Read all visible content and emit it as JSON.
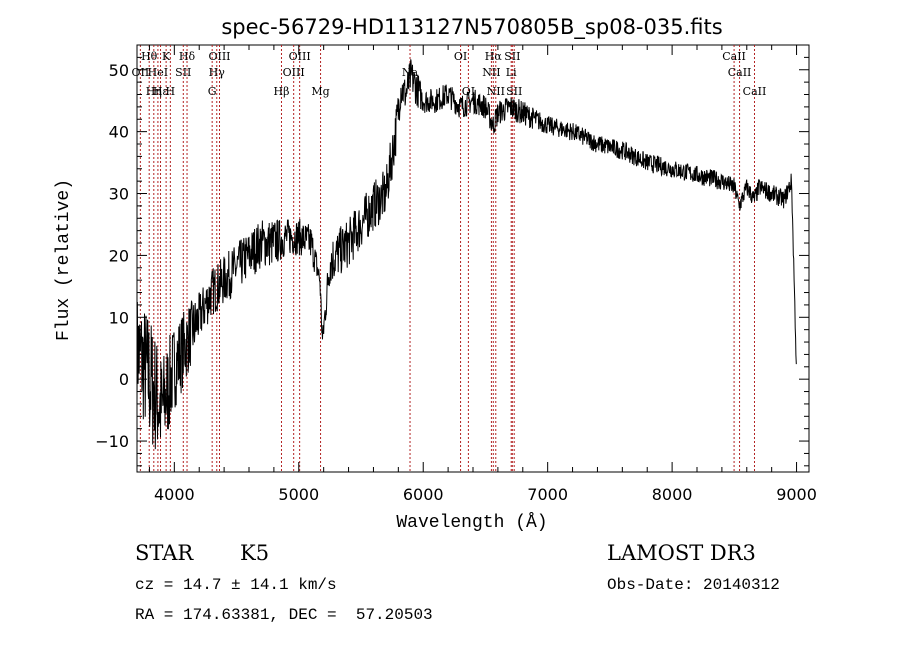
{
  "chart_data": {
    "type": "line",
    "title": "spec-56729-HD113127N570805B_sp08-035.fits",
    "xlabel": "Wavelength (Å)",
    "ylabel": "Flux (relative)",
    "xlim": [
      3700,
      9100
    ],
    "ylim": [
      -15,
      54
    ],
    "xticks": [
      {
        "value": 4000,
        "label": "4000"
      },
      {
        "value": 5000,
        "label": "5000"
      },
      {
        "value": 6000,
        "label": "6000"
      },
      {
        "value": 7000,
        "label": "7000"
      },
      {
        "value": 8000,
        "label": "8000"
      },
      {
        "value": 9000,
        "label": "9000"
      }
    ],
    "yticks": [
      {
        "value": -10,
        "label": "−10"
      },
      {
        "value": 0,
        "label": "0"
      },
      {
        "value": 10,
        "label": "10"
      },
      {
        "value": 20,
        "label": "20"
      },
      {
        "value": 30,
        "label": "30"
      },
      {
        "value": 40,
        "label": "40"
      },
      {
        "value": 50,
        "label": "50"
      }
    ],
    "grid": false,
    "series": [
      {
        "name": "spectrum",
        "color": "#000000",
        "x": [
          3700,
          3800,
          3900,
          4000,
          4100,
          4200,
          4300,
          4400,
          4500,
          4600,
          4700,
          4800,
          4900,
          5000,
          5100,
          5170,
          5190,
          5250,
          5400,
          5500,
          5600,
          5700,
          5780,
          5820,
          5860,
          5900,
          5950,
          6000,
          6100,
          6200,
          6300,
          6400,
          6500,
          6563,
          6600,
          6700,
          6800,
          7000,
          7200,
          7400,
          7600,
          7800,
          8000,
          8200,
          8400,
          8500,
          8540,
          8600,
          8660,
          8700,
          8800,
          8900,
          8960,
          9000
        ],
        "y": [
          5,
          0,
          -5,
          2,
          6,
          10,
          14,
          16,
          18,
          20,
          22,
          22,
          23,
          23,
          22,
          16,
          6,
          19,
          22,
          25,
          28,
          30,
          40,
          47,
          46,
          49,
          47,
          45,
          45,
          46,
          44,
          45,
          44,
          41,
          43,
          44,
          43,
          41,
          40,
          38,
          37,
          35,
          34,
          33,
          32,
          31,
          28,
          31,
          29,
          31,
          30,
          29,
          32,
          1
        ],
        "noise": [
          9,
          11,
          9,
          7,
          6,
          4,
          4,
          4,
          4,
          4,
          4,
          4,
          3,
          3,
          3,
          2,
          2,
          4,
          4,
          4,
          4,
          4,
          4,
          3,
          3,
          3,
          3,
          2,
          2,
          2,
          2,
          2,
          2,
          2,
          2,
          2,
          2,
          1.5,
          1.5,
          1.5,
          1.5,
          1.5,
          1.5,
          1.5,
          1.5,
          1.5,
          1.5,
          1.5,
          1.5,
          1.5,
          1.5,
          1.5,
          1.5,
          1.5
        ]
      }
    ],
    "lines": [
      {
        "wave": 3798,
        "row": 0,
        "label": "Hθ"
      },
      {
        "wave": 3727,
        "row": 1,
        "label": "OII"
      },
      {
        "wave": 3835,
        "row": 2,
        "label": "Hη"
      },
      {
        "wave": 3868,
        "row": 1,
        "label": "HeI"
      },
      {
        "wave": 3889,
        "row": 2,
        "label": "Hε"
      },
      {
        "wave": 3934,
        "row": 0,
        "label": "K"
      },
      {
        "wave": 3968,
        "row": 2,
        "label": "H"
      },
      {
        "wave": 4072,
        "row": 1,
        "label": "SII"
      },
      {
        "wave": 4102,
        "row": 0,
        "label": "Hδ"
      },
      {
        "wave": 4304,
        "row": 2,
        "label": "G"
      },
      {
        "wave": 4341,
        "row": 1,
        "label": "Hγ"
      },
      {
        "wave": 4363,
        "row": 0,
        "label": "OIII"
      },
      {
        "wave": 4861,
        "row": 2,
        "label": "Hβ"
      },
      {
        "wave": 4959,
        "row": 1,
        "label": "OIII"
      },
      {
        "wave": 5007,
        "row": 0,
        "label": "OIII"
      },
      {
        "wave": 5175,
        "row": 2,
        "label": "Mg"
      },
      {
        "wave": 5894,
        "row": 1,
        "label": "Na"
      },
      {
        "wave": 6300,
        "row": 0,
        "label": "OI"
      },
      {
        "wave": 6363,
        "row": 2,
        "label": "OI"
      },
      {
        "wave": 6548,
        "row": 1,
        "label": "NII"
      },
      {
        "wave": 6563,
        "row": 0,
        "label": "Hα"
      },
      {
        "wave": 6583,
        "row": 2,
        "label": "NII"
      },
      {
        "wave": 6707,
        "row": 1,
        "label": "Li"
      },
      {
        "wave": 6716,
        "row": 0,
        "label": "SII"
      },
      {
        "wave": 6731,
        "row": 2,
        "label": "SII"
      },
      {
        "wave": 8498,
        "row": 0,
        "label": "CaII"
      },
      {
        "wave": 8542,
        "row": 1,
        "label": "CaII"
      },
      {
        "wave": 8662,
        "row": 2,
        "label": "CaII"
      }
    ],
    "line_color": "#b22222"
  },
  "info": {
    "class": "STAR",
    "subclass": "K5",
    "survey": "LAMOST DR3",
    "cz": "cz = 14.7 ± 14.1 km/s",
    "obs_date": "Obs-Date: 20140312",
    "coords": "RA = 174.63381, DEC =  57.20503"
  }
}
